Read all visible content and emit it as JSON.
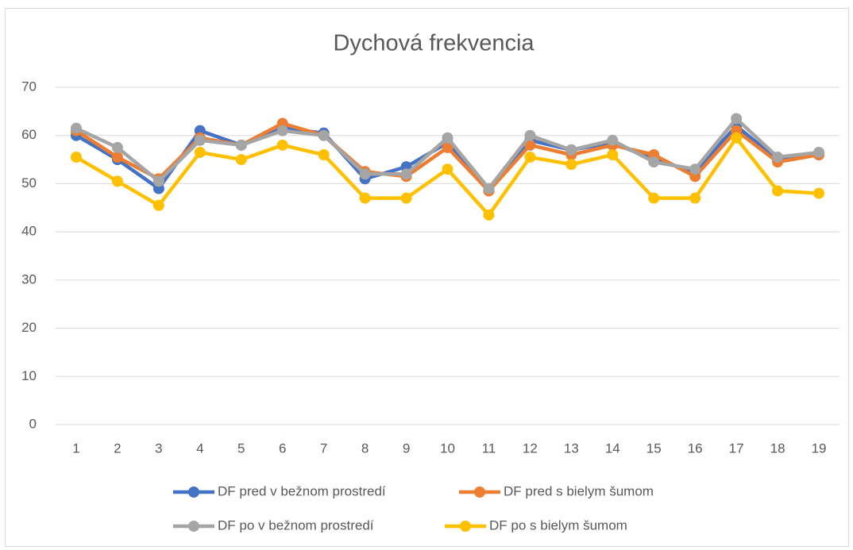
{
  "chart_data": {
    "type": "line",
    "title": "Dychová frekvencia",
    "categories": [
      "1",
      "2",
      "3",
      "4",
      "5",
      "6",
      "7",
      "8",
      "9",
      "10",
      "11",
      "12",
      "13",
      "14",
      "15",
      "16",
      "17",
      "18",
      "19"
    ],
    "series": [
      {
        "name": "DF pred v bežnom prostredí",
        "color": "#4472c4",
        "values": [
          60,
          55,
          49,
          61,
          58,
          61.5,
          60.5,
          51,
          53.5,
          58.5,
          48.5,
          59,
          57,
          58.5,
          55,
          52.5,
          62,
          55,
          56
        ]
      },
      {
        "name": "DF pred s bielym šumom",
        "color": "#ed7d31",
        "values": [
          61,
          55.5,
          51,
          59.5,
          58,
          62.5,
          60,
          52.5,
          51.5,
          57.5,
          48.5,
          58,
          56,
          58,
          56,
          51.5,
          61,
          54.5,
          56
        ]
      },
      {
        "name": "DF po v bežnom prostredí",
        "color": "#a5a5a5",
        "values": [
          61.5,
          57.5,
          50.5,
          59,
          58,
          61,
          60,
          52,
          52,
          59.5,
          49,
          60,
          57,
          59,
          54.5,
          53,
          63.5,
          55.5,
          56.5
        ]
      },
      {
        "name": "DF po s bielym šumom",
        "color": "#ffc000",
        "values": [
          55.5,
          50.5,
          45.5,
          56.5,
          55,
          58,
          56,
          47,
          47,
          53,
          43.5,
          55.5,
          54,
          56,
          47,
          47,
          59.5,
          48.5,
          48
        ]
      }
    ],
    "ylim": [
      0,
      70
    ],
    "yticks": [
      0,
      10,
      20,
      30,
      40,
      50,
      60,
      70
    ],
    "grid": true,
    "legend": "bottom"
  }
}
